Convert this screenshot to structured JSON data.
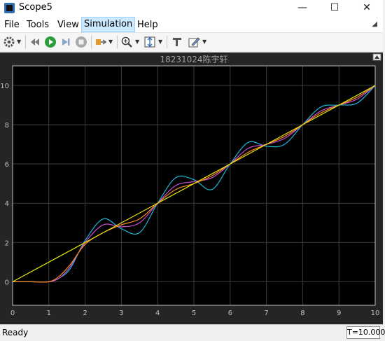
{
  "window": {
    "title": "Scope5",
    "minimize": "—",
    "maximize": "☐",
    "close": "✕"
  },
  "menu": [
    "File",
    "Tools",
    "View",
    "Simulation",
    "Help"
  ],
  "toolbar_icons": [
    "gear-icon",
    "revert-icon",
    "run-icon",
    "step-forward-icon",
    "stop-icon",
    "highlight-icon",
    "zoom-icon",
    "scale-icon",
    "cursor-icon",
    "edit-icon"
  ],
  "status": {
    "text": "Ready",
    "time": "T=10.000"
  },
  "colors": {
    "background": "#000000",
    "axes": "#bfbfbf",
    "grid": "#3c3c3c"
  },
  "chart_data": {
    "type": "line",
    "title": "18231024陈宇轩",
    "xlim": [
      0,
      10
    ],
    "ylim": [
      -1.2,
      11
    ],
    "xticks": [
      "0",
      "1",
      "2",
      "3",
      "4",
      "5",
      "6",
      "7",
      "8",
      "9",
      "10"
    ],
    "yticks": [
      "0",
      "2",
      "4",
      "6",
      "8",
      "10"
    ],
    "grid": true,
    "series": [
      {
        "color": "#e6e60a",
        "x": [
          0,
          1,
          2,
          3,
          4,
          5,
          6,
          7,
          8,
          9,
          10
        ],
        "y": [
          0,
          1,
          2,
          3,
          4,
          5,
          6,
          7,
          8,
          9,
          10
        ]
      },
      {
        "color": "#ff8c1a",
        "x": [
          0,
          0.5,
          1,
          1.3,
          1.6,
          2,
          2.5,
          3,
          3.5,
          4,
          4.5,
          5,
          5.5,
          6,
          6.5,
          7,
          7.5,
          8,
          8.5,
          9,
          9.5,
          10
        ],
        "y": [
          0,
          0,
          0,
          0.3,
          0.9,
          1.9,
          2.5,
          2.9,
          3.2,
          4.0,
          4.7,
          5.0,
          5.4,
          6.0,
          6.6,
          7.0,
          7.4,
          8.0,
          8.6,
          9.0,
          9.4,
          10.0
        ]
      },
      {
        "color": "#c84dd6",
        "x": [
          0,
          0.5,
          1,
          1.3,
          1.6,
          2,
          2.5,
          3,
          3.5,
          4,
          4.5,
          5,
          5.5,
          6,
          6.5,
          7,
          7.5,
          8,
          8.5,
          9,
          9.5,
          10
        ],
        "y": [
          0,
          0,
          0,
          0.2,
          0.8,
          2.0,
          2.9,
          2.8,
          3.0,
          4.0,
          4.9,
          5.1,
          5.3,
          6.0,
          6.8,
          7.0,
          7.3,
          8.0,
          8.7,
          9.0,
          9.3,
          10.0
        ]
      },
      {
        "color": "#1fb5d6",
        "x": [
          0,
          0.5,
          1,
          1.3,
          1.6,
          2,
          2.5,
          3,
          3.5,
          4,
          4.5,
          5,
          5.5,
          6,
          6.5,
          7,
          7.5,
          8,
          8.5,
          9,
          9.5,
          10
        ],
        "y": [
          0,
          0,
          0,
          0.2,
          0.7,
          2.1,
          3.2,
          2.7,
          2.5,
          4.0,
          5.3,
          5.2,
          4.7,
          6.0,
          7.1,
          6.9,
          7.0,
          8.0,
          8.9,
          9.0,
          9.1,
          10.0
        ]
      }
    ]
  }
}
